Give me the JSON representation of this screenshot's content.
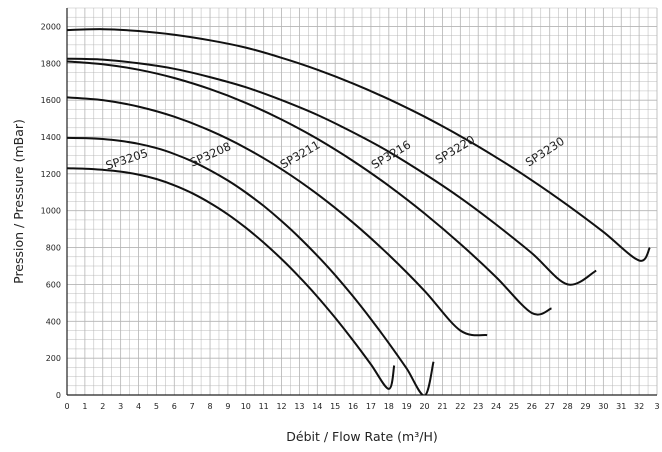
{
  "chart_data": {
    "type": "line",
    "xlabel": "Débit / Flow Rate (m³/H)",
    "ylabel": "Pression / Pressure (mBar)",
    "xlim": [
      0,
      33
    ],
    "ylim": [
      0,
      2100
    ],
    "x_ticks": [
      "0",
      "1",
      "2",
      "3",
      "4",
      "5",
      "6",
      "7",
      "8",
      "9",
      "10",
      "11",
      "12",
      "13",
      "14",
      "15",
      "16",
      "17",
      "18",
      "19",
      "20",
      "21",
      "22",
      "23",
      "24",
      "25",
      "26",
      "27",
      "28",
      "29",
      "30",
      "31",
      "32",
      "3"
    ],
    "y_ticks": [
      "0",
      "200",
      "400",
      "600",
      "800",
      "1000",
      "1200",
      "1400",
      "1600",
      "1800",
      "2000"
    ],
    "grid": true,
    "legend": "none",
    "line_color": "#111111",
    "grid_color": "#b4b4b4",
    "series": [
      {
        "name": "SP3205",
        "x": [
          0,
          1,
          2,
          3,
          4,
          5,
          6,
          7,
          8,
          9,
          10,
          11,
          12,
          13,
          14,
          15,
          16,
          17,
          18,
          18.3
        ],
        "y": [
          1230,
          1228,
          1222,
          1212,
          1196,
          1172,
          1138,
          1095,
          1042,
          980,
          908,
          827,
          738,
          640,
          534,
          419,
          296,
          166,
          33,
          160
        ]
      },
      {
        "name": "SP3208",
        "x": [
          0,
          1,
          2,
          3,
          4,
          5,
          6,
          7,
          8,
          9,
          10,
          11,
          12,
          13,
          14,
          15,
          16,
          17,
          18,
          19,
          20,
          20.5
        ],
        "y": [
          1395,
          1394,
          1389,
          1379,
          1363,
          1340,
          1308,
          1268,
          1220,
          1164,
          1099,
          1026,
          944,
          854,
          756,
          650,
          535,
          412,
          281,
          143,
          -3,
          180
        ]
      },
      {
        "name": "SP3211",
        "x": [
          0,
          2,
          4,
          6,
          8,
          10,
          12,
          14,
          16,
          18,
          20,
          22,
          23.5
        ],
        "y": [
          1615,
          1600,
          1565,
          1510,
          1435,
          1340,
          1225,
          1090,
          935,
          760,
          565,
          350,
          325
        ]
      },
      {
        "name": "SP3216",
        "x": [
          0,
          2,
          4,
          6,
          8,
          10,
          12,
          14,
          16,
          18,
          20,
          22,
          24,
          26,
          27.1
        ],
        "y": [
          1810,
          1795,
          1765,
          1720,
          1660,
          1585,
          1495,
          1390,
          1270,
          1135,
          985,
          820,
          640,
          445,
          470
        ]
      },
      {
        "name": "SP3220",
        "x": [
          0,
          2,
          4,
          6,
          8,
          10,
          12,
          14,
          16,
          18,
          20,
          22,
          24,
          26,
          28,
          29.6
        ],
        "y": [
          1825,
          1820,
          1800,
          1770,
          1725,
          1670,
          1600,
          1520,
          1425,
          1320,
          1200,
          1070,
          925,
          770,
          600,
          675
        ]
      },
      {
        "name": "SP3230",
        "x": [
          0,
          2,
          4,
          6,
          8,
          10,
          12,
          14,
          16,
          18,
          20,
          22,
          24,
          26,
          28,
          30,
          32,
          32.6
        ],
        "y": [
          1980,
          1985,
          1975,
          1955,
          1925,
          1885,
          1830,
          1765,
          1690,
          1605,
          1510,
          1405,
          1290,
          1165,
          1030,
          885,
          730,
          800
        ]
      }
    ]
  }
}
